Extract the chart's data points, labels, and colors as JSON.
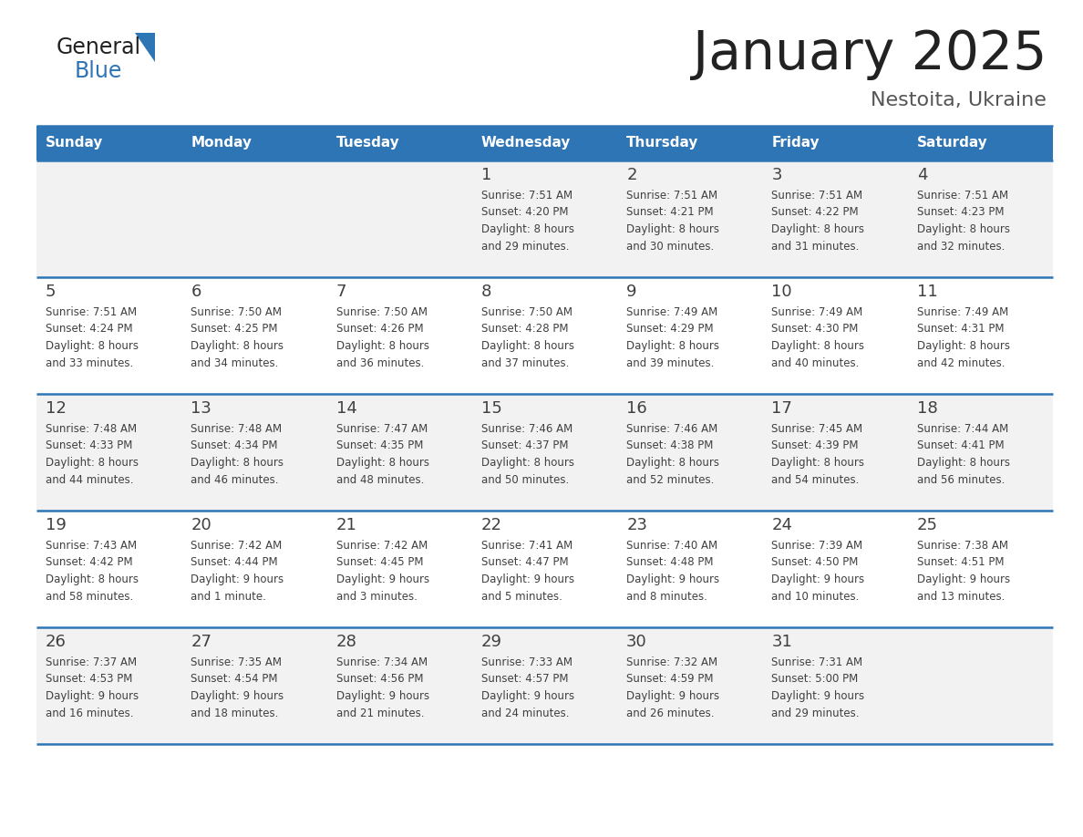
{
  "title": "January 2025",
  "subtitle": "Nestoita, Ukraine",
  "header_color": "#2E75B6",
  "header_text_color": "#FFFFFF",
  "days_of_week": [
    "Sunday",
    "Monday",
    "Tuesday",
    "Wednesday",
    "Thursday",
    "Friday",
    "Saturday"
  ],
  "background_color": "#FFFFFF",
  "cell_bg_odd": "#F2F2F2",
  "cell_bg_even": "#FFFFFF",
  "separator_color": "#2E75B6",
  "text_color": "#404040",
  "logo_general_color": "#222222",
  "logo_blue_color": "#2E75B6",
  "title_color": "#222222",
  "subtitle_color": "#555555",
  "calendar_data": [
    [
      {
        "day": "",
        "sunrise": "",
        "sunset": "",
        "daylight": ""
      },
      {
        "day": "",
        "sunrise": "",
        "sunset": "",
        "daylight": ""
      },
      {
        "day": "",
        "sunrise": "",
        "sunset": "",
        "daylight": ""
      },
      {
        "day": "1",
        "sunrise": "7:51 AM",
        "sunset": "4:20 PM",
        "daylight": "8 hours\nand 29 minutes."
      },
      {
        "day": "2",
        "sunrise": "7:51 AM",
        "sunset": "4:21 PM",
        "daylight": "8 hours\nand 30 minutes."
      },
      {
        "day": "3",
        "sunrise": "7:51 AM",
        "sunset": "4:22 PM",
        "daylight": "8 hours\nand 31 minutes."
      },
      {
        "day": "4",
        "sunrise": "7:51 AM",
        "sunset": "4:23 PM",
        "daylight": "8 hours\nand 32 minutes."
      }
    ],
    [
      {
        "day": "5",
        "sunrise": "7:51 AM",
        "sunset": "4:24 PM",
        "daylight": "8 hours\nand 33 minutes."
      },
      {
        "day": "6",
        "sunrise": "7:50 AM",
        "sunset": "4:25 PM",
        "daylight": "8 hours\nand 34 minutes."
      },
      {
        "day": "7",
        "sunrise": "7:50 AM",
        "sunset": "4:26 PM",
        "daylight": "8 hours\nand 36 minutes."
      },
      {
        "day": "8",
        "sunrise": "7:50 AM",
        "sunset": "4:28 PM",
        "daylight": "8 hours\nand 37 minutes."
      },
      {
        "day": "9",
        "sunrise": "7:49 AM",
        "sunset": "4:29 PM",
        "daylight": "8 hours\nand 39 minutes."
      },
      {
        "day": "10",
        "sunrise": "7:49 AM",
        "sunset": "4:30 PM",
        "daylight": "8 hours\nand 40 minutes."
      },
      {
        "day": "11",
        "sunrise": "7:49 AM",
        "sunset": "4:31 PM",
        "daylight": "8 hours\nand 42 minutes."
      }
    ],
    [
      {
        "day": "12",
        "sunrise": "7:48 AM",
        "sunset": "4:33 PM",
        "daylight": "8 hours\nand 44 minutes."
      },
      {
        "day": "13",
        "sunrise": "7:48 AM",
        "sunset": "4:34 PM",
        "daylight": "8 hours\nand 46 minutes."
      },
      {
        "day": "14",
        "sunrise": "7:47 AM",
        "sunset": "4:35 PM",
        "daylight": "8 hours\nand 48 minutes."
      },
      {
        "day": "15",
        "sunrise": "7:46 AM",
        "sunset": "4:37 PM",
        "daylight": "8 hours\nand 50 minutes."
      },
      {
        "day": "16",
        "sunrise": "7:46 AM",
        "sunset": "4:38 PM",
        "daylight": "8 hours\nand 52 minutes."
      },
      {
        "day": "17",
        "sunrise": "7:45 AM",
        "sunset": "4:39 PM",
        "daylight": "8 hours\nand 54 minutes."
      },
      {
        "day": "18",
        "sunrise": "7:44 AM",
        "sunset": "4:41 PM",
        "daylight": "8 hours\nand 56 minutes."
      }
    ],
    [
      {
        "day": "19",
        "sunrise": "7:43 AM",
        "sunset": "4:42 PM",
        "daylight": "8 hours\nand 58 minutes."
      },
      {
        "day": "20",
        "sunrise": "7:42 AM",
        "sunset": "4:44 PM",
        "daylight": "9 hours\nand 1 minute."
      },
      {
        "day": "21",
        "sunrise": "7:42 AM",
        "sunset": "4:45 PM",
        "daylight": "9 hours\nand 3 minutes."
      },
      {
        "day": "22",
        "sunrise": "7:41 AM",
        "sunset": "4:47 PM",
        "daylight": "9 hours\nand 5 minutes."
      },
      {
        "day": "23",
        "sunrise": "7:40 AM",
        "sunset": "4:48 PM",
        "daylight": "9 hours\nand 8 minutes."
      },
      {
        "day": "24",
        "sunrise": "7:39 AM",
        "sunset": "4:50 PM",
        "daylight": "9 hours\nand 10 minutes."
      },
      {
        "day": "25",
        "sunrise": "7:38 AM",
        "sunset": "4:51 PM",
        "daylight": "9 hours\nand 13 minutes."
      }
    ],
    [
      {
        "day": "26",
        "sunrise": "7:37 AM",
        "sunset": "4:53 PM",
        "daylight": "9 hours\nand 16 minutes."
      },
      {
        "day": "27",
        "sunrise": "7:35 AM",
        "sunset": "4:54 PM",
        "daylight": "9 hours\nand 18 minutes."
      },
      {
        "day": "28",
        "sunrise": "7:34 AM",
        "sunset": "4:56 PM",
        "daylight": "9 hours\nand 21 minutes."
      },
      {
        "day": "29",
        "sunrise": "7:33 AM",
        "sunset": "4:57 PM",
        "daylight": "9 hours\nand 24 minutes."
      },
      {
        "day": "30",
        "sunrise": "7:32 AM",
        "sunset": "4:59 PM",
        "daylight": "9 hours\nand 26 minutes."
      },
      {
        "day": "31",
        "sunrise": "7:31 AM",
        "sunset": "5:00 PM",
        "daylight": "9 hours\nand 29 minutes."
      },
      {
        "day": "",
        "sunrise": "",
        "sunset": "",
        "daylight": ""
      }
    ]
  ]
}
